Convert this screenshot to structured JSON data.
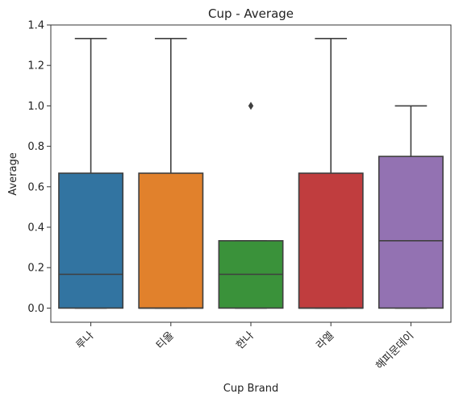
{
  "chart_data": {
    "type": "box",
    "title": "Cup - Average",
    "xlabel": "Cup Brand",
    "ylabel": "Average",
    "ylim": [
      -0.07,
      1.4
    ],
    "yticks": [
      "0.0",
      "0.2",
      "0.4",
      "0.6",
      "0.8",
      "1.0",
      "1.2",
      "1.4"
    ],
    "grid": false,
    "categories": [
      "루나",
      "티올",
      "한나",
      "라엘",
      "해피문데이"
    ],
    "boxes": [
      {
        "category": "루나",
        "whisker_low": 0.0,
        "q1": 0.0,
        "median": 0.167,
        "q3": 0.667,
        "whisker_high": 1.333,
        "outliers": [],
        "color": "#3274a1"
      },
      {
        "category": "티올",
        "whisker_low": 0.0,
        "q1": 0.0,
        "median": 0.0,
        "q3": 0.667,
        "whisker_high": 1.333,
        "outliers": [],
        "color": "#e1812c"
      },
      {
        "category": "한나",
        "whisker_low": 0.0,
        "q1": 0.0,
        "median": 0.167,
        "q3": 0.333,
        "whisker_high": 0.333,
        "outliers": [
          1.0
        ],
        "color": "#3a923a"
      },
      {
        "category": "라엘",
        "whisker_low": 0.0,
        "q1": 0.0,
        "median": 0.0,
        "q3": 0.667,
        "whisker_high": 1.333,
        "outliers": [],
        "color": "#c03d3e"
      },
      {
        "category": "해피문데이",
        "whisker_low": 0.0,
        "q1": 0.0,
        "median": 0.333,
        "q3": 0.75,
        "whisker_high": 1.0,
        "outliers": [],
        "color": "#9372b2"
      }
    ]
  }
}
